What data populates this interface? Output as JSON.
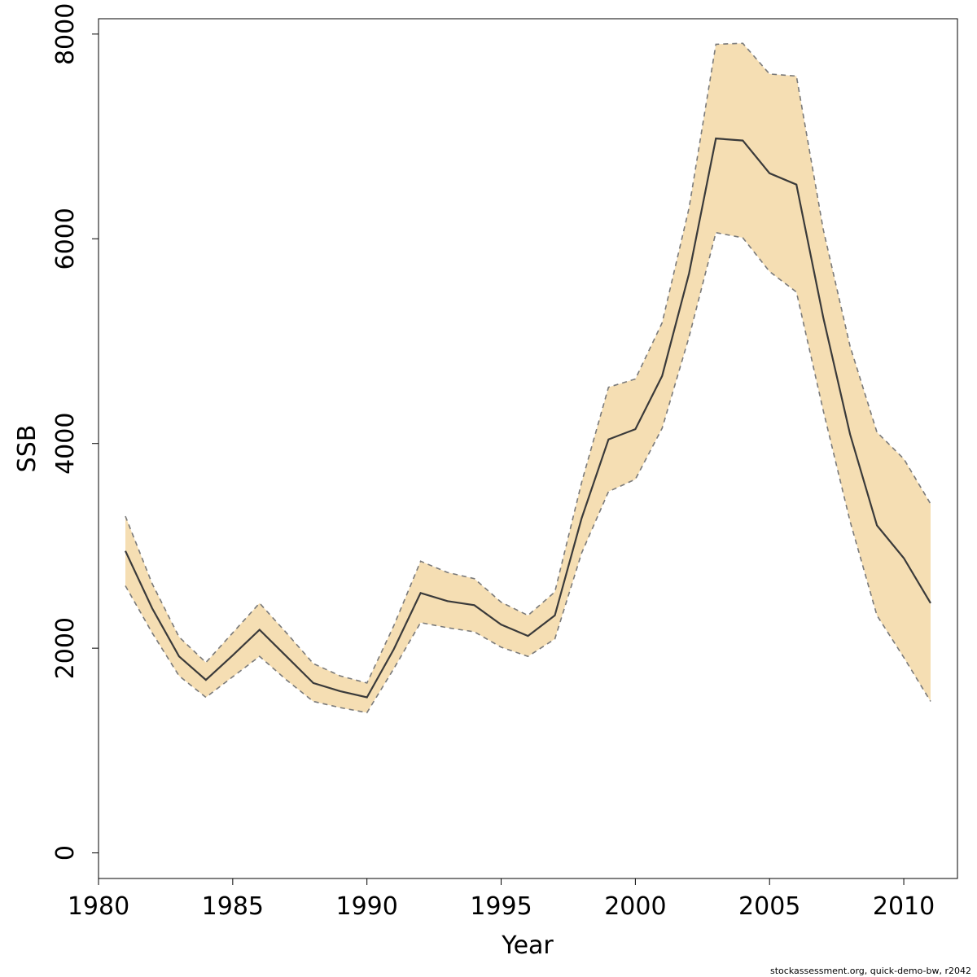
{
  "chart_data": {
    "type": "area",
    "xlabel": "Year",
    "ylabel": "SSB",
    "xlim": [
      1980,
      2012
    ],
    "ylim": [
      -250,
      8150
    ],
    "x_ticks": [
      1980,
      1985,
      1990,
      1995,
      2000,
      2005,
      2010
    ],
    "y_ticks": [
      0,
      2000,
      4000,
      6000,
      8000
    ],
    "x_tick_labels": [
      "1980",
      "1985",
      "1990",
      "1995",
      "2000",
      "2005",
      "2010"
    ],
    "y_tick_labels": [
      "0",
      "2000",
      "4000",
      "6000",
      "8000"
    ],
    "x": [
      1981,
      1982,
      1983,
      1984,
      1985,
      1986,
      1987,
      1988,
      1989,
      1990,
      1991,
      1992,
      1993,
      1994,
      1995,
      1996,
      1997,
      1998,
      1999,
      2000,
      2001,
      2002,
      2003,
      2004,
      2005,
      2006,
      2007,
      2008,
      2009,
      2010,
      2011
    ],
    "series": [
      {
        "name": "SSB",
        "values": [
          2950,
          2390,
          1920,
          1690,
          1930,
          2180,
          1920,
          1660,
          1580,
          1520,
          1990,
          2540,
          2460,
          2420,
          2230,
          2120,
          2320,
          3270,
          4040,
          4140,
          4660,
          5660,
          6980,
          6960,
          6640,
          6530,
          5230,
          4090,
          3200,
          2880,
          2440
        ]
      },
      {
        "name": "Lower",
        "values": [
          2610,
          2150,
          1730,
          1520,
          1720,
          1920,
          1690,
          1480,
          1420,
          1370,
          1800,
          2250,
          2200,
          2160,
          2010,
          1920,
          2090,
          2930,
          3530,
          3650,
          4150,
          5040,
          6060,
          6010,
          5680,
          5480,
          4320,
          3240,
          2320,
          1910,
          1480
        ]
      },
      {
        "name": "Upper",
        "values": [
          3290,
          2630,
          2110,
          1860,
          2150,
          2440,
          2150,
          1850,
          1730,
          1660,
          2220,
          2850,
          2740,
          2680,
          2450,
          2320,
          2550,
          3620,
          4550,
          4630,
          5180,
          6300,
          7900,
          7910,
          7610,
          7590,
          6090,
          4950,
          4110,
          3850,
          3410
        ]
      }
    ],
    "colors": {
      "band": "#f5deb3",
      "bound": "#7a7a7a",
      "estimate": "#3a3a3a"
    }
  },
  "footer": {
    "credit": "stockassessment.org, quick-demo-bw, r2042"
  }
}
